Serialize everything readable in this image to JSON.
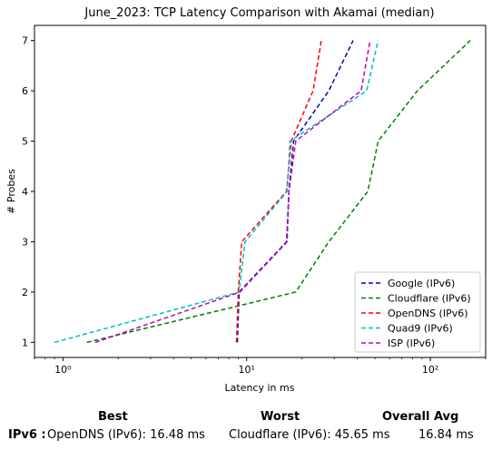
{
  "chart_data": {
    "type": "line",
    "title": "June_2023: TCP Latency Comparison with Akamai (median)",
    "xlabel": "Latency in ms",
    "ylabel": "# Probes",
    "x_scale": "log",
    "xlim": [
      0.7,
      200
    ],
    "ylim": [
      0.7,
      7.3
    ],
    "x_ticks": [
      1,
      10,
      100
    ],
    "x_tick_labels": [
      "10⁰",
      "10¹",
      "10²"
    ],
    "y_ticks": [
      1,
      2,
      3,
      4,
      5,
      6,
      7
    ],
    "grid": false,
    "legend_position": "lower-right",
    "series": [
      {
        "name": "Google (IPv6)",
        "color": "#0000bf",
        "x": [
          8.9,
          9.1,
          16.5,
          17.0,
          18.0,
          28.0,
          38.0
        ],
        "y": [
          1,
          2,
          3,
          4,
          5,
          6,
          7
        ]
      },
      {
        "name": "Cloudflare (IPv6)",
        "color": "#008000",
        "x": [
          1.35,
          18.5,
          28.0,
          45.65,
          52.0,
          85.0,
          165.0
        ],
        "y": [
          1,
          2,
          3,
          4,
          5,
          6,
          7
        ]
      },
      {
        "name": "OpenDNS (IPv6)",
        "color": "#ff0000",
        "x": [
          8.8,
          9.0,
          9.4,
          16.48,
          17.5,
          23.0,
          25.5
        ],
        "y": [
          1,
          2,
          3,
          4,
          5,
          6,
          7
        ]
      },
      {
        "name": "Quad9 (IPv6)",
        "color": "#00bfbf",
        "x": [
          0.9,
          9.1,
          9.8,
          16.6,
          17.2,
          45.0,
          52.0
        ],
        "y": [
          1,
          2,
          3,
          4,
          5,
          6,
          7
        ]
      },
      {
        "name": "ISP (IPv6)",
        "color": "#bf00bf",
        "x": [
          1.5,
          9.2,
          16.6,
          17.0,
          18.5,
          42.0,
          47.0
        ],
        "y": [
          1,
          2,
          3,
          4,
          5,
          6,
          7
        ]
      }
    ]
  },
  "stats": {
    "best_header": "Best",
    "worst_header": "Worst",
    "avg_header": "Overall Avg",
    "row_label": "IPv6 :",
    "best_value": "OpenDNS (IPv6): 16.48 ms",
    "worst_value": "Cloudflare (IPv6): 45.65 ms",
    "avg_value": "16.84 ms"
  }
}
